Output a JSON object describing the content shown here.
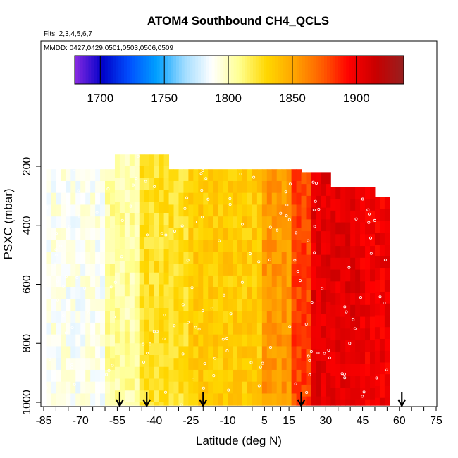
{
  "chart_data": {
    "type": "heatmap",
    "title": "ATOM4 Southbound CH4_QCLS",
    "flights_note": "Flts: 2,3,4,5,6,7",
    "dates_note": "MMDD: 0427,0429,0501,0503,0506,0509",
    "xlabel": "Latitude (deg N)",
    "ylabel": "PSXC (mbar)",
    "xlim": [
      -87,
      77
    ],
    "ylim": [
      1010,
      0
    ],
    "x_ticks": [
      -85,
      -70,
      -55,
      -40,
      -25,
      -10,
      5,
      15,
      30,
      45,
      60,
      75
    ],
    "y_ticks": [
      200,
      400,
      600,
      800,
      1000
    ],
    "colorbar": {
      "range": [
        1680,
        1937
      ],
      "ticks": [
        1700,
        1750,
        1800,
        1850,
        1900
      ],
      "colors": [
        "#8a2be2",
        "#0000c8",
        "#0050ff",
        "#00a0ff",
        "#a0dcff",
        "#ffffff",
        "#ffff90",
        "#ffd700",
        "#ffa500",
        "#ff6000",
        "#ff0000",
        "#c80000",
        "#962020"
      ]
    },
    "arrows_lat": [
      -54,
      -43,
      -20,
      20,
      61
    ],
    "regions": [
      {
        "lat_range": [
          -84,
          -60
        ],
        "value": 1790
      },
      {
        "lat_range": [
          -60,
          -45
        ],
        "value": 1805
      },
      {
        "lat_range": [
          -45,
          -25
        ],
        "value": 1825
      },
      {
        "lat_range": [
          -25,
          5
        ],
        "value": 1835
      },
      {
        "lat_range": [
          5,
          17
        ],
        "value": 1855
      },
      {
        "lat_range": [
          17,
          25
        ],
        "value": 1880
      },
      {
        "lat_range": [
          25,
          45
        ],
        "value": 1905
      },
      {
        "lat_range": [
          45,
          56
        ],
        "value": 1900
      }
    ],
    "profile": [
      {
        "lat_range": [
          -55,
          -34
        ],
        "p_top": 160
      },
      {
        "lat_range": [
          -34,
          20
        ],
        "p_top": 210
      },
      {
        "lat_range": [
          -84,
          -55
        ],
        "p_top": 210
      },
      {
        "lat_range": [
          20,
          32
        ],
        "p_top": 220
      },
      {
        "lat_range": [
          32,
          50
        ],
        "p_top": 270
      },
      {
        "lat_range": [
          50,
          57
        ],
        "p_top": 305
      }
    ]
  }
}
